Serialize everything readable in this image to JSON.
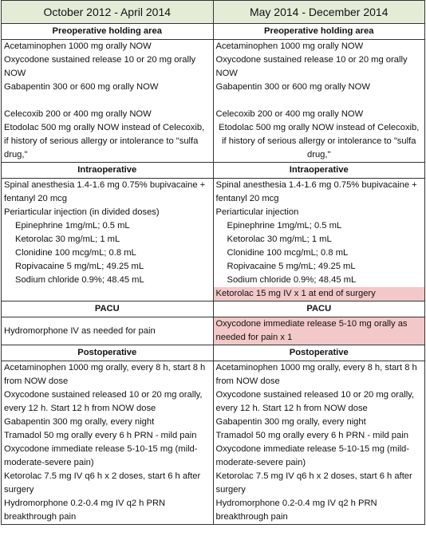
{
  "header": [
    "October 2012 - April 2014",
    "May 2014 - December 2014"
  ],
  "highlight_color": "#f2c8c8",
  "sections": [
    {
      "title": [
        "Preoperative holding area",
        "Preoperative holding area"
      ],
      "left": [
        {
          "text": "Acetaminophen 1000 mg orally NOW"
        },
        {
          "text": "Oxycodone sustained release 10 or 20 mg orally NOW"
        },
        {
          "text": "Gabapentin 300 or 600 mg orally NOW"
        },
        {
          "text": "Celecoxib 200 or 400 mg orally NOW"
        },
        {
          "text": "Etodolac 500 mg orally NOW instead of Celecoxib, if history of serious allergy or intolerance to \"sulfa drug,\""
        }
      ],
      "right": [
        {
          "text": "Acetaminophen 1000 mg orally NOW"
        },
        {
          "text": "Oxycodone sustained release 10 or 20 mg orally NOW"
        },
        {
          "text": "Gabapentin 300 or 600 mg orally NOW"
        },
        {
          "text": "Celecoxib 200 or 400 mg orally NOW"
        },
        {
          "text": "Etodolac 500 mg orally NOW instead of Celecoxib, if history of serious allergy or intolerance to \"sulfa drug,\""
        }
      ]
    },
    {
      "title": [
        "Intraoperative",
        "Intraoperative"
      ],
      "left": [
        {
          "text": "Spinal anesthesia 1.4-1.6 mg 0.75% bupivacaine + fentanyl 20 mcg"
        },
        {
          "text": "Periarticular injection (in divided doses)",
          "items": [
            "Epinephrine 1mg/mL; 0.5 mL",
            "Ketorolac 30 mg/mL; 1 mL",
            "Clonidine 100 mcg/mL; 0.8 mL",
            "Ropivacaine 5 mg/mL; 49.25 mL",
            "Sodium chloride 0.9%; 48.45 mL"
          ]
        }
      ],
      "right": [
        {
          "text": "Spinal anesthesia 1.4-1.6 mg 0.75% bupivacaine + fentanyl 20 mcg"
        },
        {
          "text": "Periarticular injection",
          "items": [
            "Epinephrine 1mg/mL; 0.5 mL",
            "Ketorolac 30 mg/mL; 1 mL",
            "Clonidine 100 mcg/mL; 0.8 mL",
            "Ropivacaine 5 mg/mL; 49.25 mL",
            "Sodium chloride 0.9%; 48.45 mL"
          ]
        },
        {
          "text": "Ketorolac 15 mg IV x 1 at end of surgery",
          "highlight": true
        }
      ]
    },
    {
      "title": [
        "PACU",
        "PACU"
      ],
      "left": [
        {
          "text": "Hydromorphone IV as needed for pain"
        }
      ],
      "right": [
        {
          "text": "Oxycodone immediate release 5-10 mg orally as needed for pain x 1",
          "highlight": true
        }
      ]
    },
    {
      "title": [
        "Postoperative",
        "Postoperative"
      ],
      "left": [
        {
          "text": "Acetaminophen 1000 mg orally, every 8 h, start 8 h from NOW dose"
        },
        {
          "text": "Oxycodone sustained released 10 or 20 mg orally, every 12 h. Start 12 h from NOW dose"
        },
        {
          "text": "Gabapentin 300 mg orally, every night"
        },
        {
          "text": "Tramadol 50 mg orally every 6 h PRN - mild pain"
        },
        {
          "text": "Oxycodone immediate release 5-10-15 mg (mild-moderate-severe pain)"
        },
        {
          "text": "Ketorolac 7.5 mg IV q6 h x 2 doses, start 6 h after surgery"
        },
        {
          "text": "Hydromorphone 0.2-0.4 mg IV q2 h PRN breakthrough pain"
        }
      ],
      "right": [
        {
          "text": "Acetaminophen 1000 mg orally, every 8 h, start 8 h from NOW dose"
        },
        {
          "text": "Oxycodone sustained released 10 or 20 mg orally, every 12 h. Start 12 h from NOW dose"
        },
        {
          "text": "Gabapentin 300 mg orally, every night"
        },
        {
          "text": "Tramadol 50 mg orally every 6 h PRN - mild pain"
        },
        {
          "text": "Oxycodone immediate release 5-10-15 mg (mild-moderate-severe pain)"
        },
        {
          "text": "Ketorolac 7.5 mg IV q6 h x 2 doses, start 6 h after surgery"
        },
        {
          "text": "Hydromorphone 0.2-0.4 mg IV q2 h PRN breakthrough pain"
        }
      ]
    }
  ]
}
